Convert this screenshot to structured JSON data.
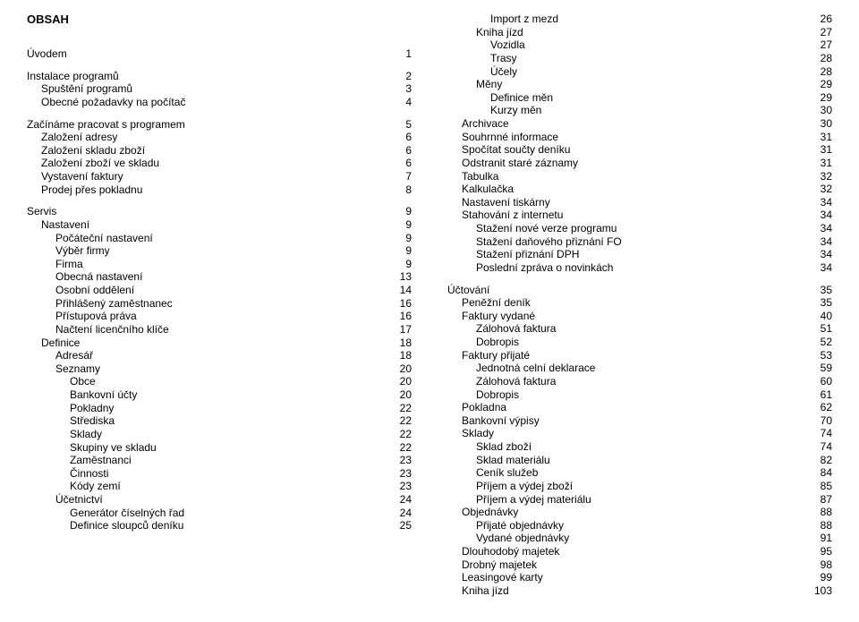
{
  "title": "OBSAH",
  "left_entries": [
    {
      "type": "gap"
    },
    {
      "label": "Úvodem",
      "page": 1,
      "indent": 0
    },
    {
      "type": "gap"
    },
    {
      "label": "Instalace programů",
      "page": 2,
      "indent": 0
    },
    {
      "label": "Spuštění programů",
      "page": 3,
      "indent": 1
    },
    {
      "label": "Obecné požadavky na počítač",
      "page": 4,
      "indent": 1
    },
    {
      "type": "gap"
    },
    {
      "label": "Začínáme pracovat s programem",
      "page": 5,
      "indent": 0
    },
    {
      "label": "Založení adresy",
      "page": 6,
      "indent": 1
    },
    {
      "label": "Založení skladu zboží",
      "page": 6,
      "indent": 1
    },
    {
      "label": "Založení zboží ve skladu",
      "page": 6,
      "indent": 1
    },
    {
      "label": "Vystavení faktury",
      "page": 7,
      "indent": 1
    },
    {
      "label": "Prodej přes pokladnu",
      "page": 8,
      "indent": 1
    },
    {
      "type": "gap"
    },
    {
      "label": "Servis",
      "page": 9,
      "indent": 0
    },
    {
      "label": "Nastavení",
      "page": 9,
      "indent": 1
    },
    {
      "label": "Počáteční nastavení",
      "page": 9,
      "indent": 2
    },
    {
      "label": "Výběr firmy",
      "page": 9,
      "indent": 2
    },
    {
      "label": "Firma",
      "page": 9,
      "indent": 2
    },
    {
      "label": "Obecná nastavení",
      "page": 13,
      "indent": 2
    },
    {
      "label": "Osobní oddělení",
      "page": 14,
      "indent": 2
    },
    {
      "label": "Přihlášený zaměstnanec",
      "page": 16,
      "indent": 2
    },
    {
      "label": "Přístupová práva",
      "page": 16,
      "indent": 2
    },
    {
      "label": "Načtení licenčního klíče",
      "page": 17,
      "indent": 2
    },
    {
      "label": "Definice",
      "page": 18,
      "indent": 1
    },
    {
      "label": "Adresář",
      "page": 18,
      "indent": 2
    },
    {
      "label": "Seznamy",
      "page": 20,
      "indent": 2
    },
    {
      "label": "Obce",
      "page": 20,
      "indent": 3
    },
    {
      "label": "Bankovní účty",
      "page": 20,
      "indent": 3
    },
    {
      "label": "Pokladny",
      "page": 22,
      "indent": 3
    },
    {
      "label": "Střediska",
      "page": 22,
      "indent": 3
    },
    {
      "label": "Sklady",
      "page": 22,
      "indent": 3
    },
    {
      "label": "Skupiny ve skladu",
      "page": 22,
      "indent": 3
    },
    {
      "label": "Zaměstnanci",
      "page": 23,
      "indent": 3
    },
    {
      "label": "Činnosti",
      "page": 23,
      "indent": 3
    },
    {
      "label": "Kódy zemí",
      "page": 23,
      "indent": 3
    },
    {
      "label": "Účetnictví",
      "page": 24,
      "indent": 2
    },
    {
      "label": "Generátor číselných řad",
      "page": 24,
      "indent": 3
    },
    {
      "label": "Definice sloupců deníku",
      "page": 25,
      "indent": 3
    }
  ],
  "right_entries": [
    {
      "label": "Import z mezd",
      "page": 26,
      "indent": 3
    },
    {
      "label": "Kniha jízd",
      "page": 27,
      "indent": 2
    },
    {
      "label": "Vozidla",
      "page": 27,
      "indent": 3
    },
    {
      "label": "Trasy",
      "page": 28,
      "indent": 3
    },
    {
      "label": "Účely",
      "page": 28,
      "indent": 3
    },
    {
      "label": "Měny",
      "page": 29,
      "indent": 2
    },
    {
      "label": "Definice měn",
      "page": 29,
      "indent": 3
    },
    {
      "label": "Kurzy měn",
      "page": 30,
      "indent": 3
    },
    {
      "label": "Archivace",
      "page": 30,
      "indent": 1
    },
    {
      "label": "Souhrnné informace",
      "page": 31,
      "indent": 1
    },
    {
      "label": "Spočítat součty deníku",
      "page": 31,
      "indent": 1
    },
    {
      "label": "Odstranit staré záznamy",
      "page": 31,
      "indent": 1
    },
    {
      "label": "Tabulka",
      "page": 32,
      "indent": 1
    },
    {
      "label": "Kalkulačka",
      "page": 32,
      "indent": 1
    },
    {
      "label": "Nastavení tiskárny",
      "page": 34,
      "indent": 1
    },
    {
      "label": "Stahování z internetu",
      "page": 34,
      "indent": 1
    },
    {
      "label": "Stažení nové verze programu",
      "page": 34,
      "indent": 2
    },
    {
      "label": "Stažení daňového přiznání FO",
      "page": 34,
      "indent": 2
    },
    {
      "label": "Stažení přiznání DPH",
      "page": 34,
      "indent": 2
    },
    {
      "label": "Poslední zpráva o novinkách",
      "page": 34,
      "indent": 2
    },
    {
      "type": "gap"
    },
    {
      "label": "Účtování",
      "page": 35,
      "indent": 0
    },
    {
      "label": "Peněžní deník",
      "page": 35,
      "indent": 1
    },
    {
      "label": "Faktury vydané",
      "page": 40,
      "indent": 1
    },
    {
      "label": "Zálohová faktura",
      "page": 51,
      "indent": 2
    },
    {
      "label": "Dobropis",
      "page": 52,
      "indent": 2
    },
    {
      "label": "Faktury přijaté",
      "page": 53,
      "indent": 1
    },
    {
      "label": "Jednotná celní deklarace",
      "page": 59,
      "indent": 2
    },
    {
      "label": "Zálohová faktura",
      "page": 60,
      "indent": 2
    },
    {
      "label": "Dobropis",
      "page": 61,
      "indent": 2
    },
    {
      "label": "Pokladna",
      "page": 62,
      "indent": 1
    },
    {
      "label": "Bankovní výpisy",
      "page": 70,
      "indent": 1
    },
    {
      "label": "Sklady",
      "page": 74,
      "indent": 1
    },
    {
      "label": "Sklad zboží",
      "page": 74,
      "indent": 2
    },
    {
      "label": "Sklad materiálu",
      "page": 82,
      "indent": 2
    },
    {
      "label": "Ceník služeb",
      "page": 84,
      "indent": 2
    },
    {
      "label": "Příjem a výdej zboží",
      "page": 85,
      "indent": 2
    },
    {
      "label": "Příjem a výdej materiálu",
      "page": 87,
      "indent": 2
    },
    {
      "label": "Objednávky",
      "page": 88,
      "indent": 1
    },
    {
      "label": "Přijaté objednávky",
      "page": 88,
      "indent": 2
    },
    {
      "label": "Vydané objednávky",
      "page": 91,
      "indent": 2
    },
    {
      "label": "Dlouhodobý majetek",
      "page": 95,
      "indent": 1
    },
    {
      "label": "Drobný majetek",
      "page": 98,
      "indent": 1
    },
    {
      "label": "Leasingové karty",
      "page": 99,
      "indent": 1
    },
    {
      "label": "Kniha jízd",
      "page": 103,
      "indent": 1
    }
  ]
}
